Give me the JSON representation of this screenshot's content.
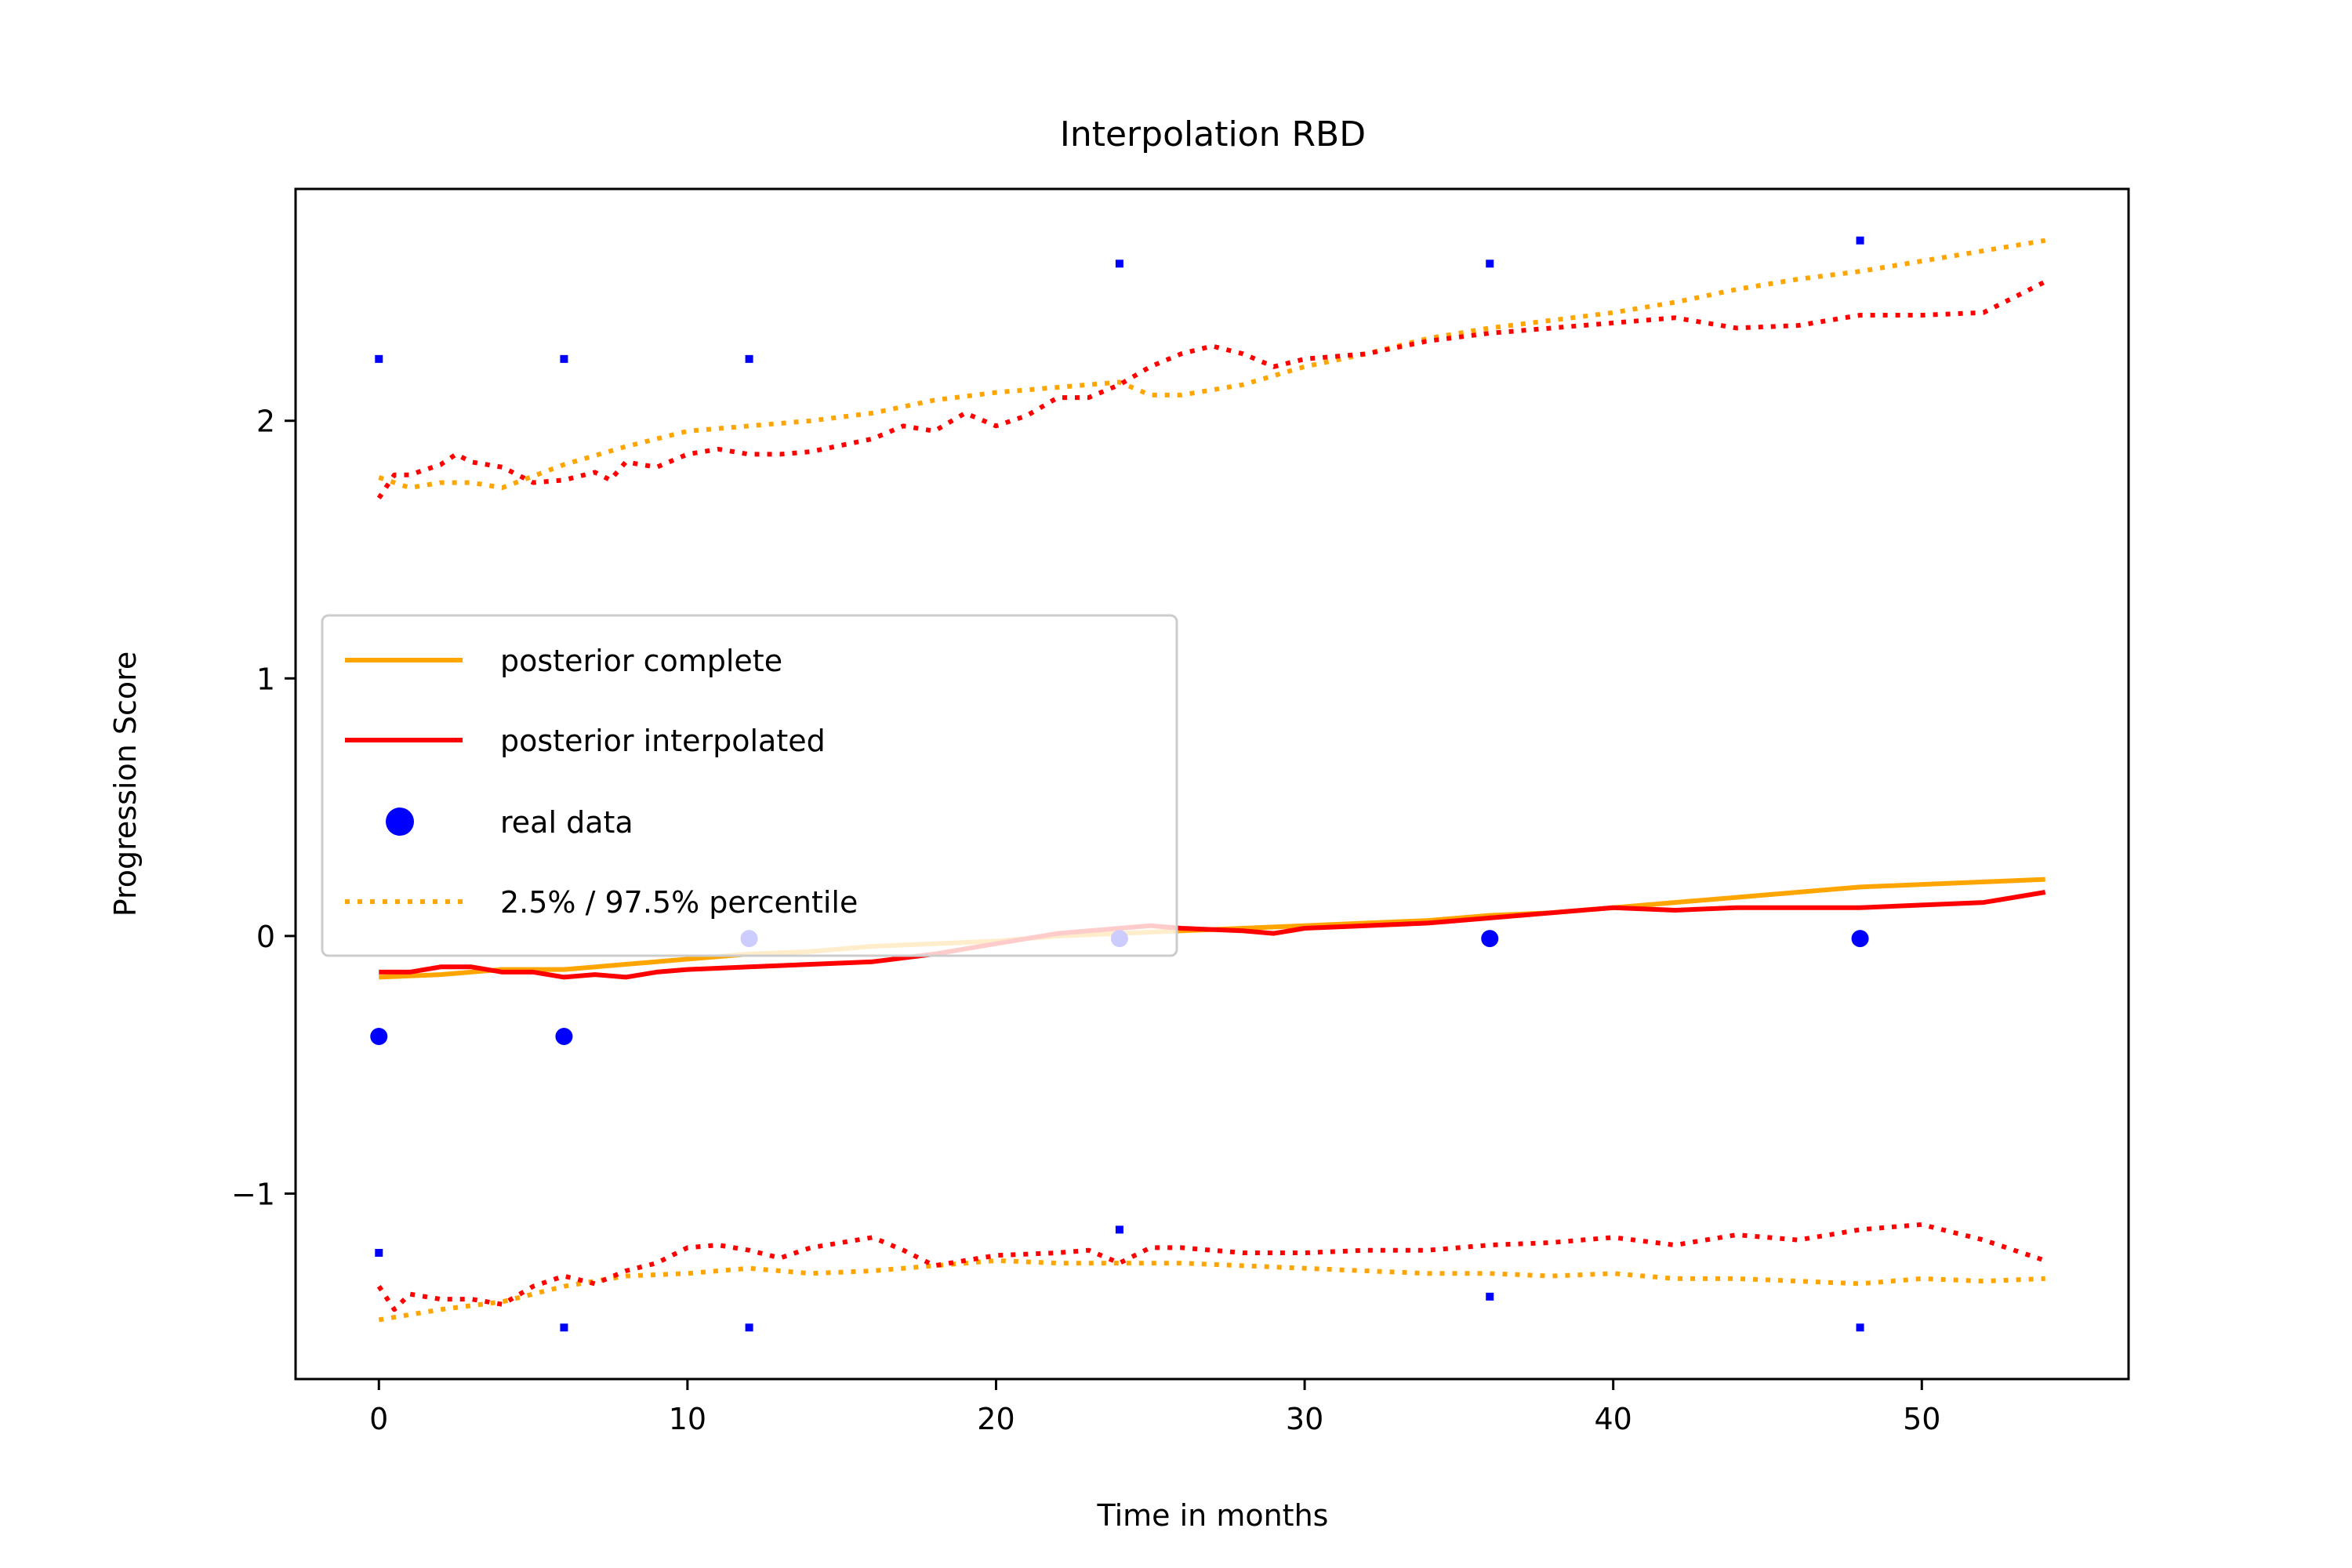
{
  "chart_data": {
    "type": "line",
    "title": "Interpolation RBD",
    "xlabel": "Time in months",
    "ylabel": "Progression Score",
    "xlim": [
      -2.7,
      56.7
    ],
    "ylim": [
      -1.72,
      2.9
    ],
    "xticks": [
      0,
      10,
      20,
      30,
      40,
      50
    ],
    "xtick_labels": [
      "0",
      "10",
      "20",
      "30",
      "40",
      "50"
    ],
    "yticks": [
      -1,
      0,
      1,
      2
    ],
    "ytick_labels": [
      "−1",
      "0",
      "1",
      "2"
    ],
    "grid": false,
    "legend_position": "center-left",
    "legend": [
      {
        "label": "posterior complete",
        "color": "#ffa500",
        "style": "solid"
      },
      {
        "label": "posterior interpolated",
        "color": "#ff0000",
        "style": "solid"
      },
      {
        "label": "real data",
        "color": "#0000ff",
        "style": "marker"
      },
      {
        "label": "2.5% / 97.5% percentile",
        "color": "#ffa500",
        "style": "dotted"
      }
    ],
    "series": [
      {
        "name": "posterior complete",
        "color": "#ffa500",
        "style": "solid",
        "x": [
          0,
          2,
          4,
          6,
          8,
          10,
          12,
          14,
          16,
          18,
          20,
          22,
          24,
          26,
          28,
          30,
          32,
          34,
          36,
          38,
          40,
          42,
          44,
          46,
          48,
          50,
          52,
          54
        ],
        "y": [
          -0.16,
          -0.15,
          -0.13,
          -0.13,
          -0.11,
          -0.09,
          -0.07,
          -0.06,
          -0.04,
          -0.03,
          -0.02,
          0.0,
          0.01,
          0.02,
          0.03,
          0.04,
          0.05,
          0.06,
          0.08,
          0.09,
          0.11,
          0.13,
          0.15,
          0.17,
          0.19,
          0.2,
          0.21,
          0.22
        ]
      },
      {
        "name": "posterior interpolated",
        "color": "#ff0000",
        "style": "solid",
        "x": [
          0,
          1,
          2,
          3,
          4,
          5,
          6,
          7,
          8,
          9,
          10,
          12,
          14,
          16,
          18,
          20,
          22,
          24,
          25,
          26,
          28,
          29,
          30,
          32,
          34,
          36,
          38,
          40,
          42,
          44,
          46,
          48,
          50,
          52,
          54
        ],
        "y": [
          -0.14,
          -0.14,
          -0.12,
          -0.12,
          -0.14,
          -0.14,
          -0.16,
          -0.15,
          -0.16,
          -0.14,
          -0.13,
          -0.12,
          -0.11,
          -0.1,
          -0.07,
          -0.03,
          0.01,
          0.03,
          0.04,
          0.03,
          0.02,
          0.01,
          0.03,
          0.04,
          0.05,
          0.07,
          0.09,
          0.11,
          0.1,
          0.11,
          0.11,
          0.11,
          0.12,
          0.13,
          0.17
        ]
      },
      {
        "name": "posterior complete 2.5% percentile",
        "color": "#ffa500",
        "style": "dotted",
        "x": [
          0,
          2,
          4,
          6,
          8,
          10,
          12,
          14,
          16,
          18,
          20,
          22,
          24,
          26,
          28,
          30,
          32,
          34,
          36,
          38,
          40,
          42,
          44,
          46,
          48,
          50,
          52,
          54
        ],
        "y": [
          -1.49,
          -1.45,
          -1.42,
          -1.36,
          -1.32,
          -1.31,
          -1.29,
          -1.31,
          -1.3,
          -1.28,
          -1.26,
          -1.27,
          -1.27,
          -1.27,
          -1.28,
          -1.29,
          -1.3,
          -1.31,
          -1.31,
          -1.32,
          -1.31,
          -1.33,
          -1.33,
          -1.34,
          -1.35,
          -1.33,
          -1.34,
          -1.33
        ]
      },
      {
        "name": "posterior complete 97.5% percentile",
        "color": "#ffa500",
        "style": "dotted",
        "x": [
          0,
          1,
          2,
          3,
          4,
          6,
          8,
          10,
          12,
          14,
          16,
          18,
          20,
          22,
          24,
          25,
          26,
          28,
          30,
          32,
          34,
          36,
          38,
          40,
          42,
          44,
          46,
          48,
          50,
          52,
          54
        ],
        "y": [
          1.78,
          1.74,
          1.76,
          1.76,
          1.74,
          1.83,
          1.9,
          1.96,
          1.98,
          2.0,
          2.03,
          2.08,
          2.11,
          2.13,
          2.15,
          2.1,
          2.1,
          2.14,
          2.21,
          2.26,
          2.32,
          2.36,
          2.39,
          2.42,
          2.46,
          2.51,
          2.55,
          2.58,
          2.62,
          2.66,
          2.7
        ]
      },
      {
        "name": "posterior interpolated 2.5% percentile",
        "color": "#ff0000",
        "style": "dotted",
        "x": [
          0,
          0.5,
          1,
          2,
          3,
          4,
          5,
          6,
          7,
          8,
          9,
          10,
          11,
          12,
          13,
          14,
          15,
          16,
          17,
          18,
          20,
          22,
          23,
          24,
          25,
          26,
          28,
          30,
          32,
          34,
          36,
          38,
          40,
          42,
          44,
          46,
          48,
          50,
          52,
          54
        ],
        "y": [
          -1.36,
          -1.45,
          -1.39,
          -1.41,
          -1.41,
          -1.43,
          -1.36,
          -1.32,
          -1.35,
          -1.3,
          -1.27,
          -1.21,
          -1.2,
          -1.22,
          -1.25,
          -1.21,
          -1.19,
          -1.17,
          -1.22,
          -1.28,
          -1.24,
          -1.23,
          -1.22,
          -1.27,
          -1.21,
          -1.21,
          -1.23,
          -1.23,
          -1.22,
          -1.22,
          -1.2,
          -1.19,
          -1.17,
          -1.2,
          -1.16,
          -1.18,
          -1.14,
          -1.12,
          -1.18,
          -1.26
        ]
      },
      {
        "name": "posterior interpolated 97.5% percentile",
        "color": "#ff0000",
        "style": "dotted",
        "x": [
          0,
          0.5,
          1,
          2,
          2.5,
          3,
          4,
          5,
          6,
          7,
          7.5,
          8,
          9,
          10,
          11,
          12,
          13,
          14,
          16,
          17,
          18,
          19,
          20,
          21,
          22,
          23,
          24,
          25,
          26,
          27,
          28,
          29,
          30,
          32,
          34,
          36,
          38,
          40,
          42,
          44,
          46,
          48,
          50,
          52,
          54
        ],
        "y": [
          1.7,
          1.79,
          1.79,
          1.83,
          1.87,
          1.84,
          1.82,
          1.76,
          1.77,
          1.8,
          1.77,
          1.84,
          1.82,
          1.87,
          1.89,
          1.87,
          1.87,
          1.88,
          1.93,
          1.98,
          1.96,
          2.03,
          1.98,
          2.02,
          2.09,
          2.09,
          2.14,
          2.21,
          2.26,
          2.29,
          2.26,
          2.21,
          2.24,
          2.26,
          2.31,
          2.34,
          2.36,
          2.38,
          2.4,
          2.36,
          2.37,
          2.41,
          2.41,
          2.42,
          2.54
        ]
      }
    ],
    "points": {
      "name": "real data",
      "color": "#0000ff",
      "large": [
        {
          "x": 0,
          "y": -0.39
        },
        {
          "x": 6,
          "y": -0.39
        },
        {
          "x": 12,
          "y": -0.01
        },
        {
          "x": 24,
          "y": -0.01
        },
        {
          "x": 36,
          "y": -0.01
        },
        {
          "x": 48,
          "y": -0.01
        }
      ],
      "small": [
        {
          "x": 0,
          "y": 2.24
        },
        {
          "x": 6,
          "y": 2.24
        },
        {
          "x": 12,
          "y": 2.24
        },
        {
          "x": 24,
          "y": 2.61
        },
        {
          "x": 36,
          "y": 2.61
        },
        {
          "x": 48,
          "y": 2.7
        },
        {
          "x": 0,
          "y": -1.23
        },
        {
          "x": 6,
          "y": -1.52
        },
        {
          "x": 12,
          "y": -1.52
        },
        {
          "x": 24,
          "y": -1.14
        },
        {
          "x": 36,
          "y": -1.4
        },
        {
          "x": 48,
          "y": -1.52
        }
      ]
    }
  }
}
